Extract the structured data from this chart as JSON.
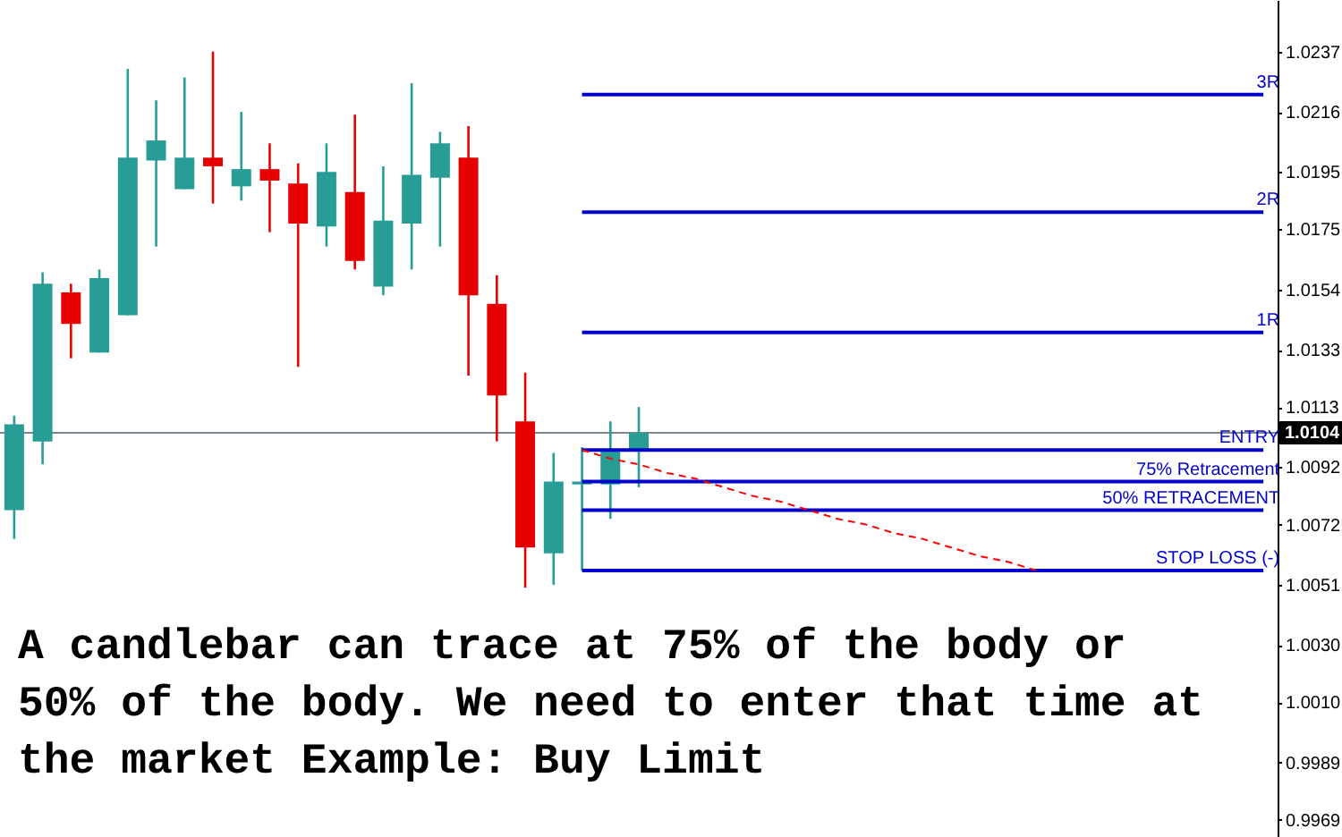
{
  "chart_data": {
    "type": "candlestick",
    "categories": [
      null,
      null,
      null,
      null,
      null,
      null,
      null,
      null,
      null,
      null,
      null,
      null,
      null,
      null,
      null,
      null,
      null,
      null,
      null,
      null,
      null,
      null,
      null,
      null,
      null,
      null,
      null,
      null,
      null,
      null,
      null,
      null,
      null,
      null,
      null,
      null,
      null,
      null,
      null,
      null,
      null,
      null,
      null,
      null,
      null
    ],
    "ohlc": [
      [
        1.0077,
        1.011,
        1.0067,
        1.0107
      ],
      [
        1.0101,
        1.016,
        1.0093,
        1.0156
      ],
      [
        1.0153,
        1.0156,
        1.013,
        1.0142
      ],
      [
        1.0132,
        1.0161,
        1.0132,
        1.0158
      ],
      [
        1.0145,
        1.0231,
        1.0145,
        1.02
      ],
      [
        1.0199,
        1.022,
        1.0169,
        1.0206
      ],
      [
        1.0189,
        1.0228,
        1.0189,
        1.02
      ],
      [
        1.02,
        1.0237,
        1.0184,
        1.0197
      ],
      [
        1.019,
        1.0216,
        1.0185,
        1.0196
      ],
      [
        1.0196,
        1.0205,
        1.0174,
        1.0192
      ],
      [
        1.0191,
        1.0198,
        1.0127,
        1.0177
      ],
      [
        1.0176,
        1.0205,
        1.0169,
        1.0195
      ],
      [
        1.0188,
        1.0215,
        1.0161,
        1.0164
      ],
      [
        1.0155,
        1.0197,
        1.0152,
        1.0178
      ],
      [
        1.0177,
        1.0226,
        1.0161,
        1.0194
      ],
      [
        1.0193,
        1.0209,
        1.0169,
        1.0205
      ],
      [
        1.02,
        1.0211,
        1.0124,
        1.0152
      ],
      [
        1.0149,
        1.0159,
        1.0101,
        1.0117
      ],
      [
        1.0108,
        1.0125,
        1.005,
        1.0064
      ],
      [
        1.0062,
        1.0097,
        1.0051,
        1.0087
      ],
      [
        1.0086,
        1.0099,
        1.0056,
        1.0087
      ],
      [
        1.0086,
        1.0108,
        1.0074,
        1.0098
      ],
      [
        1.0098,
        1.0113,
        1.0085,
        1.0104
      ],
      null,
      null,
      null,
      null,
      null,
      null,
      null,
      null,
      null,
      null,
      null,
      null,
      null,
      null,
      null,
      null,
      null,
      null,
      null,
      null,
      null,
      null
    ],
    "colors": [
      "#279d96",
      "#279d96",
      "#e60000",
      "#279d96",
      "#279d96",
      "#279d96",
      "#279d96",
      "#e60000",
      "#279d96",
      "#e60000",
      "#e60000",
      "#279d96",
      "#e60000",
      "#279d96",
      "#279d96",
      "#279d96",
      "#e60000",
      "#e60000",
      "#e60000",
      "#279d96",
      "#279d96",
      "#279d96",
      "#279d96",
      null,
      null,
      null,
      null,
      null,
      null,
      null,
      null,
      null,
      null,
      null,
      null,
      null,
      null,
      null,
      null,
      null,
      null,
      null,
      null,
      null,
      null
    ],
    "series": [
      {
        "type": "line",
        "name": "3R",
        "color": "#0000cc",
        "values": [
          null,
          null,
          null,
          null,
          null,
          null,
          null,
          null,
          null,
          null,
          null,
          null,
          null,
          null,
          null,
          null,
          null,
          null,
          null,
          null,
          1.0222,
          1.0222,
          1.0222,
          1.0222,
          1.0222,
          1.0222,
          1.0222,
          1.0222,
          1.0222,
          1.0222,
          1.0222,
          1.0222,
          1.0222,
          1.0222,
          1.0222,
          1.0222,
          1.0222,
          1.0222,
          1.0222,
          1.0222,
          1.0222,
          1.0222,
          1.0222,
          1.0222,
          1.0222
        ]
      },
      {
        "type": "line",
        "name": "2R",
        "color": "#0000cc",
        "values": [
          null,
          null,
          null,
          null,
          null,
          null,
          null,
          null,
          null,
          null,
          null,
          null,
          null,
          null,
          null,
          null,
          null,
          null,
          null,
          null,
          1.0181,
          1.0181,
          1.0181,
          1.0181,
          1.0181,
          1.0181,
          1.0181,
          1.0181,
          1.0181,
          1.0181,
          1.0181,
          1.0181,
          1.0181,
          1.0181,
          1.0181,
          1.0181,
          1.0181,
          1.0181,
          1.0181,
          1.0181,
          1.0181,
          1.0181,
          1.0181,
          1.0181,
          1.0181
        ]
      },
      {
        "type": "line",
        "name": "1R",
        "color": "#0000cc",
        "values": [
          null,
          null,
          null,
          null,
          null,
          null,
          null,
          null,
          null,
          null,
          null,
          null,
          null,
          null,
          null,
          null,
          null,
          null,
          null,
          null,
          1.0139,
          1.0139,
          1.0139,
          1.0139,
          1.0139,
          1.0139,
          1.0139,
          1.0139,
          1.0139,
          1.0139,
          1.0139,
          1.0139,
          1.0139,
          1.0139,
          1.0139,
          1.0139,
          1.0139,
          1.0139,
          1.0139,
          1.0139,
          1.0139,
          1.0139,
          1.0139,
          1.0139,
          1.0139
        ]
      },
      {
        "type": "line",
        "name": "ENTRY",
        "color": "#0000cc",
        "values": [
          null,
          null,
          null,
          null,
          null,
          null,
          null,
          null,
          null,
          null,
          null,
          null,
          null,
          null,
          null,
          null,
          null,
          null,
          null,
          null,
          1.0098,
          1.0098,
          1.0098,
          1.0098,
          1.0098,
          1.0098,
          1.0098,
          1.0098,
          1.0098,
          1.0098,
          1.0098,
          1.0098,
          1.0098,
          1.0098,
          1.0098,
          1.0098,
          1.0098,
          1.0098,
          1.0098,
          1.0098,
          1.0098,
          1.0098,
          1.0098,
          1.0098,
          1.0098
        ]
      },
      {
        "type": "line",
        "name": "75% Retracement",
        "color": "#0000cc",
        "values": [
          null,
          null,
          null,
          null,
          null,
          null,
          null,
          null,
          null,
          null,
          null,
          null,
          null,
          null,
          null,
          null,
          null,
          null,
          null,
          null,
          1.0087,
          1.0087,
          1.0087,
          1.0087,
          1.0087,
          1.0087,
          1.0087,
          1.0087,
          1.0087,
          1.0087,
          1.0087,
          1.0087,
          1.0087,
          1.0087,
          1.0087,
          1.0087,
          1.0087,
          1.0087,
          1.0087,
          1.0087,
          1.0087,
          1.0087,
          1.0087,
          1.0087,
          1.0087
        ]
      },
      {
        "type": "line",
        "name": "50% RETRACEMENT",
        "color": "#0000cc",
        "values": [
          null,
          null,
          null,
          null,
          null,
          null,
          null,
          null,
          null,
          null,
          null,
          null,
          null,
          null,
          null,
          null,
          null,
          null,
          null,
          null,
          1.0077,
          1.0077,
          1.0077,
          1.0077,
          1.0077,
          1.0077,
          1.0077,
          1.0077,
          1.0077,
          1.0077,
          1.0077,
          1.0077,
          1.0077,
          1.0077,
          1.0077,
          1.0077,
          1.0077,
          1.0077,
          1.0077,
          1.0077,
          1.0077,
          1.0077,
          1.0077,
          1.0077,
          1.0077
        ]
      },
      {
        "type": "line",
        "name": "STOP LOSS (-)",
        "color": "#0000cc",
        "values": [
          null,
          null,
          null,
          null,
          null,
          null,
          null,
          null,
          null,
          null,
          null,
          null,
          null,
          null,
          null,
          null,
          null,
          null,
          null,
          null,
          1.0056,
          1.0056,
          1.0056,
          1.0056,
          1.0056,
          1.0056,
          1.0056,
          1.0056,
          1.0056,
          1.0056,
          1.0056,
          1.0056,
          1.0056,
          1.0056,
          1.0056,
          1.0056,
          1.0056,
          1.0056,
          1.0056,
          1.0056,
          1.0056,
          1.0056,
          1.0056,
          1.0056,
          1.0056
        ]
      },
      {
        "type": "line",
        "color": "#ff0000",
        "line_style": "dashed",
        "values": [
          null,
          null,
          null,
          null,
          null,
          null,
          null,
          null,
          null,
          null,
          null,
          null,
          null,
          null,
          null,
          null,
          null,
          null,
          null,
          null,
          1.0098,
          1.0095,
          1.0093,
          1.009,
          1.0088,
          1.0085,
          1.0082,
          1.008,
          1.0077,
          1.0074,
          1.0072,
          1.0069,
          1.0067,
          1.0064,
          1.0061,
          1.0059,
          1.0056,
          null,
          null,
          null,
          null,
          null,
          null,
          null,
          null
        ]
      }
    ],
    "ylim": [
      0.9963,
      1.0255
    ],
    "yticks": [
      0.9969,
      0.9989,
      {
        "value": 1.001,
        "label": "1.0010"
      },
      {
        "value": 1.003,
        "label": "1.0030"
      },
      1.0051,
      1.0072,
      1.0092,
      1.0113,
      1.0133,
      1.0154,
      1.0175,
      1.0195,
      1.0216,
      1.0237
    ],
    "tick_labels": "y",
    "ref_lines": [
      {
        "axis": "y",
        "value": 1.0104,
        "label": "1.0104",
        "color": "#7c868c"
      }
    ],
    "annotations": [
      "A candlebar can trace at 75% of the body or 50% of the body. We need to enter that time at the market Example: Buy Limit"
    ]
  }
}
